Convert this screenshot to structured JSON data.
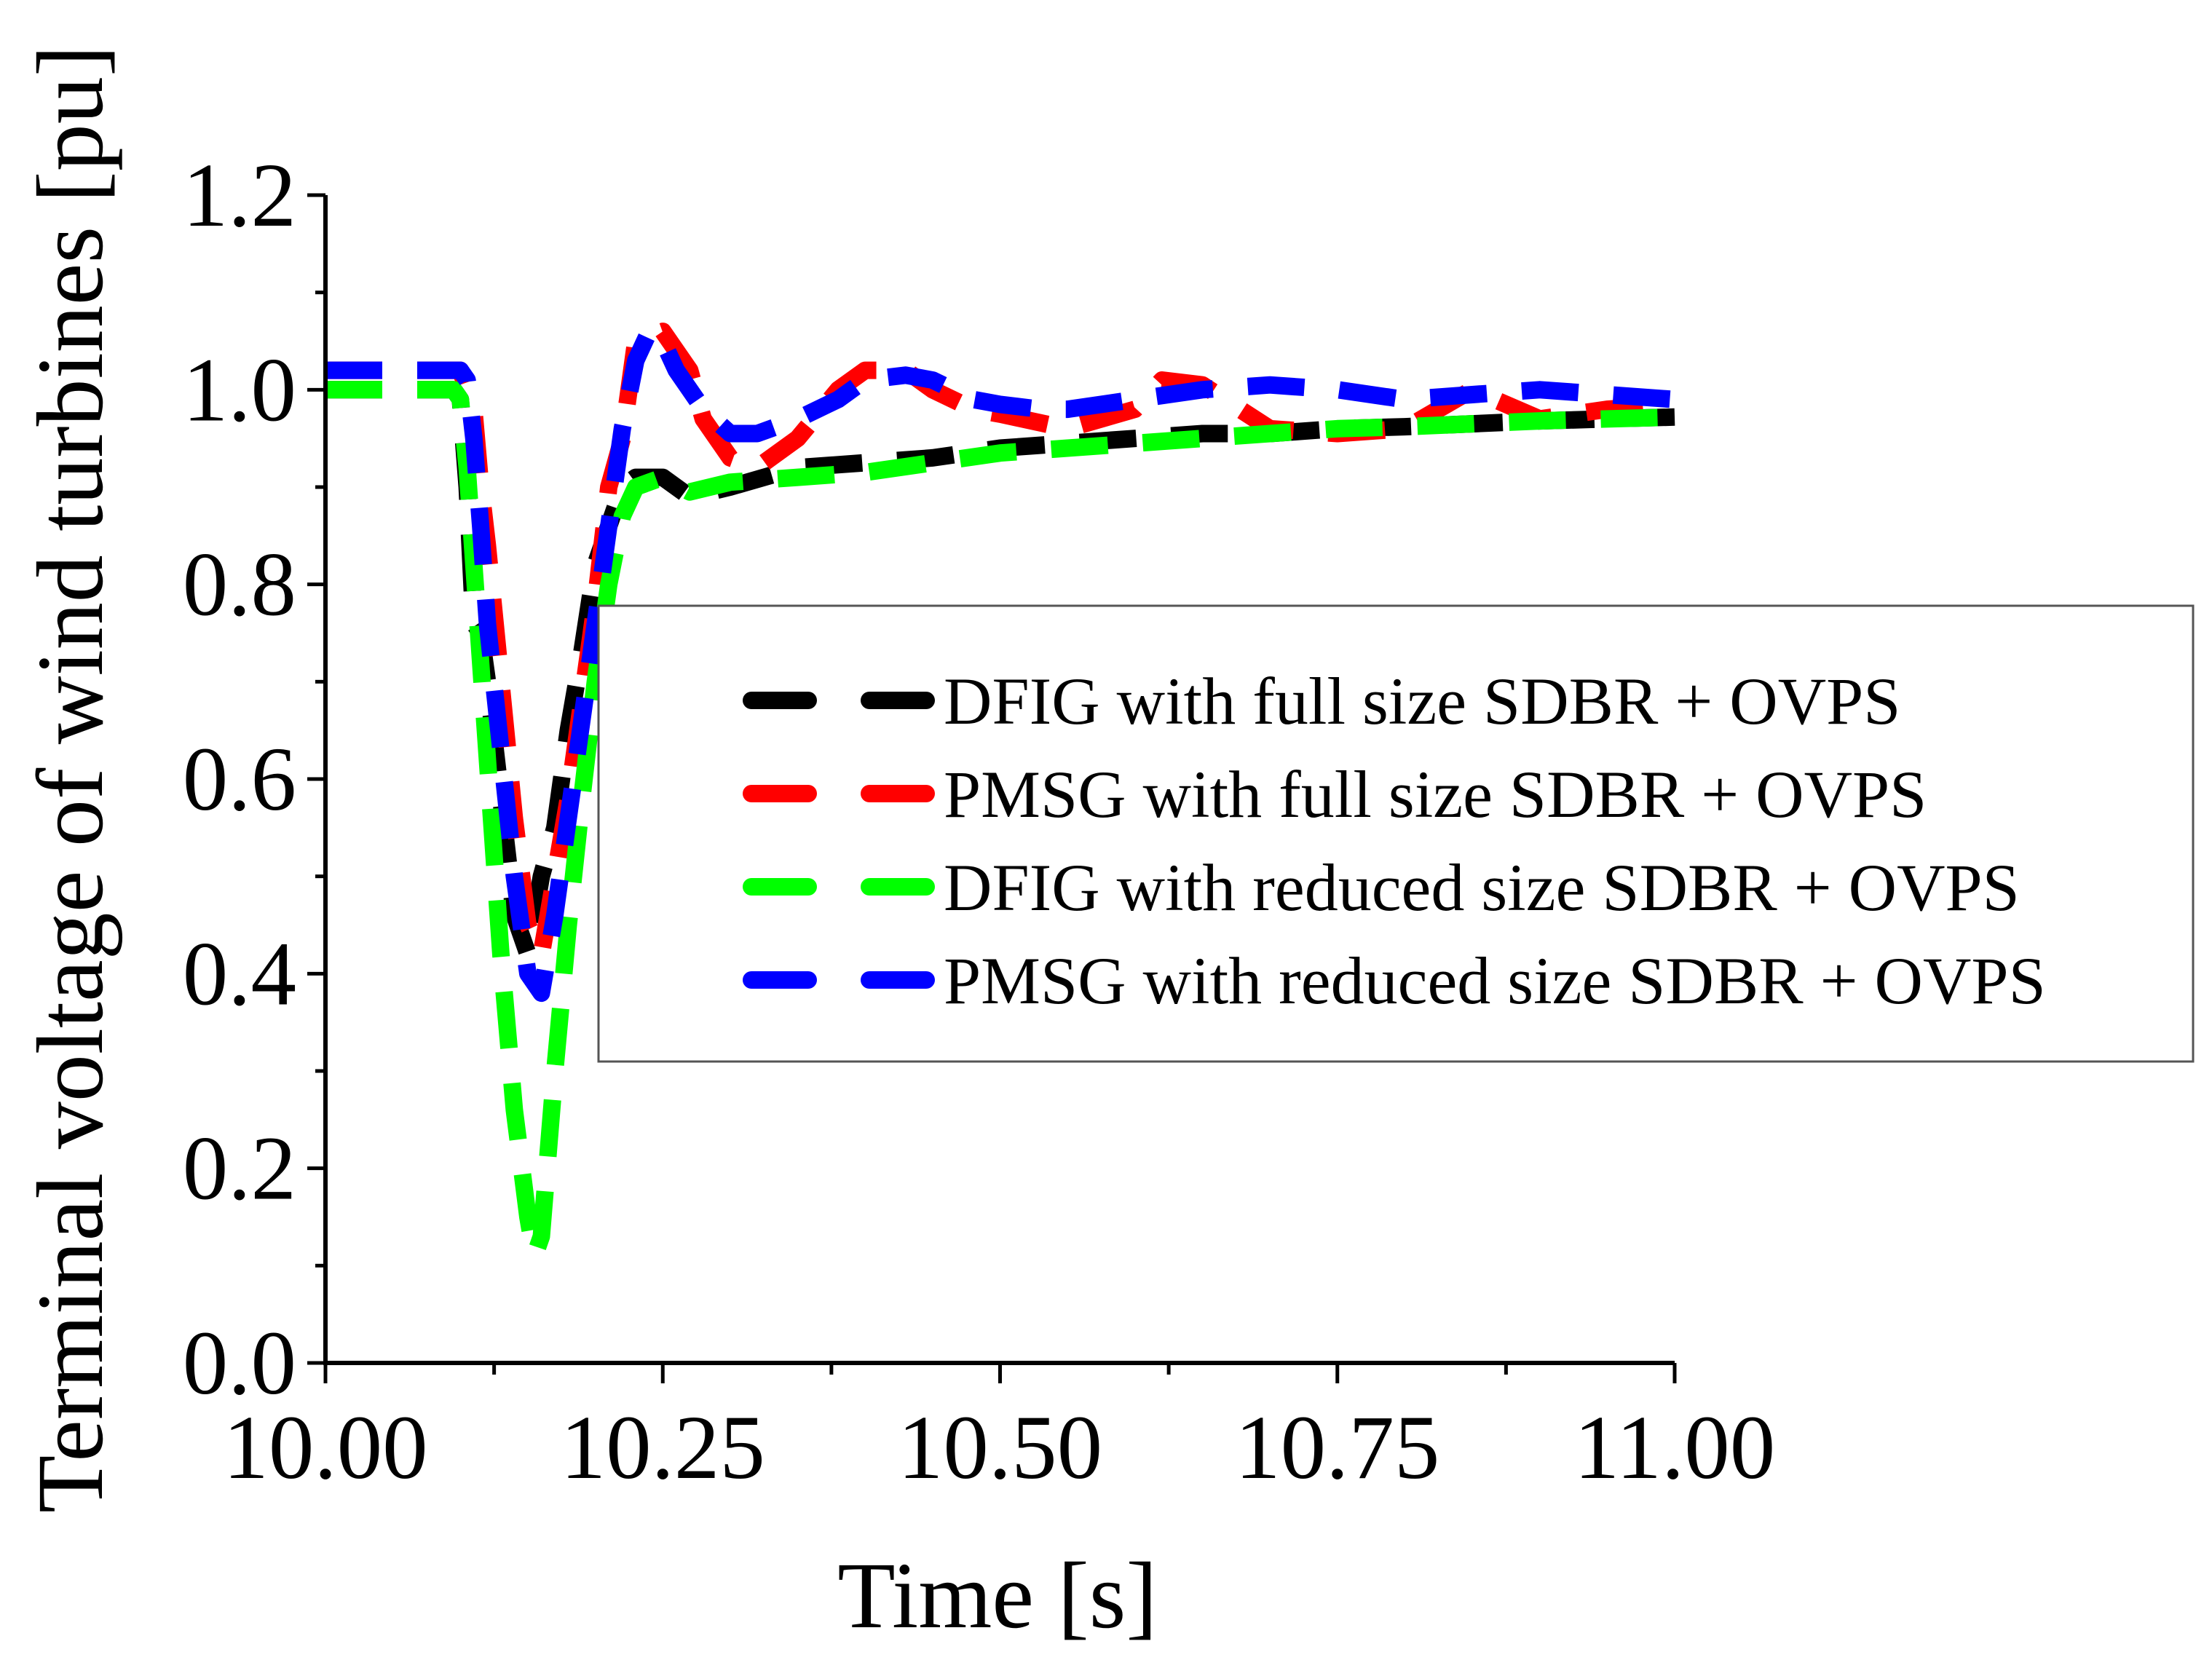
{
  "chart_data": {
    "type": "line",
    "title": "",
    "xlabel": "Time [s]",
    "ylabel": "Terminal voltage of wind turbines [pu]",
    "xlim": [
      10.0,
      11.0
    ],
    "ylim": [
      0.0,
      1.2
    ],
    "xticks": [
      10.0,
      10.25,
      10.5,
      10.75,
      11.0
    ],
    "xtick_labels": [
      "10.00",
      "10.25",
      "10.50",
      "10.75",
      "11.00"
    ],
    "yticks": [
      0.0,
      0.2,
      0.4,
      0.6,
      0.8,
      1.0,
      1.2
    ],
    "ytick_labels": [
      "0.0",
      "0.2",
      "0.4",
      "0.6",
      "0.8",
      "1.0",
      "1.2"
    ],
    "legend_position": "center-right",
    "series": [
      {
        "name": "DFIG with full size SDBR + OVPS",
        "color": "#000000",
        "x": [
          10.0,
          10.095,
          10.1,
          10.105,
          10.11,
          10.115,
          10.12,
          10.13,
          10.14,
          10.15,
          10.16,
          10.17,
          10.18,
          10.19,
          10.2,
          10.21,
          10.22,
          10.23,
          10.25,
          10.27,
          10.3,
          10.35,
          10.4,
          10.45,
          10.5,
          10.55,
          10.6,
          10.65,
          10.7,
          10.75,
          10.8,
          10.85,
          10.9,
          10.95,
          11.0
        ],
        "values": [
          1.0,
          1.0,
          0.99,
          0.9,
          0.76,
          0.75,
          0.7,
          0.58,
          0.46,
          0.42,
          0.5,
          0.55,
          0.65,
          0.73,
          0.82,
          0.86,
          0.9,
          0.91,
          0.91,
          0.89,
          0.9,
          0.92,
          0.925,
          0.93,
          0.94,
          0.945,
          0.95,
          0.955,
          0.955,
          0.96,
          0.962,
          0.965,
          0.968,
          0.97,
          0.972
        ]
      },
      {
        "name": "PMSG with full size SDBR + OVPS",
        "color": "#ff0000",
        "x": [
          10.0,
          10.05,
          10.1,
          10.105,
          10.11,
          10.115,
          10.12,
          10.13,
          10.14,
          10.15,
          10.16,
          10.17,
          10.18,
          10.19,
          10.2,
          10.21,
          10.22,
          10.23,
          10.25,
          10.27,
          10.28,
          10.3,
          10.32,
          10.35,
          10.38,
          10.4,
          10.43,
          10.45,
          10.48,
          10.5,
          10.55,
          10.6,
          10.62,
          10.65,
          10.7,
          10.75,
          10.8,
          10.85,
          10.9,
          10.95,
          11.0
        ],
        "values": [
          1.02,
          1.02,
          1.02,
          1.0,
          0.98,
          0.9,
          0.84,
          0.7,
          0.56,
          0.45,
          0.42,
          0.5,
          0.58,
          0.68,
          0.78,
          0.9,
          0.95,
          1.05,
          1.06,
          1.02,
          0.97,
          0.93,
          0.92,
          0.95,
          1.0,
          1.02,
          1.02,
          1.0,
          0.98,
          0.975,
          0.96,
          0.98,
          1.01,
          1.005,
          0.96,
          0.955,
          0.96,
          1.0,
          0.97,
          0.98,
          0.985
        ]
      },
      {
        "name": "DFIG with reduced size SDBR + OVPS",
        "color": "#00ff00",
        "x": [
          10.0,
          10.05,
          10.095,
          10.1,
          10.105,
          10.11,
          10.12,
          10.13,
          10.14,
          10.15,
          10.155,
          10.16,
          10.17,
          10.18,
          10.19,
          10.2,
          10.21,
          10.22,
          10.23,
          10.25,
          10.27,
          10.3,
          10.35,
          10.4,
          10.45,
          10.5,
          10.55,
          10.6,
          10.65,
          10.7,
          10.75,
          10.8,
          10.85,
          10.9,
          10.95,
          11.0
        ],
        "values": [
          1.0,
          1.0,
          1.0,
          0.99,
          0.92,
          0.82,
          0.62,
          0.42,
          0.26,
          0.15,
          0.11,
          0.13,
          0.3,
          0.45,
          0.58,
          0.7,
          0.8,
          0.87,
          0.9,
          0.91,
          0.895,
          0.905,
          0.91,
          0.915,
          0.925,
          0.935,
          0.94,
          0.945,
          0.95,
          0.955,
          0.96,
          0.962,
          0.965,
          0.968,
          0.97,
          0.972
        ]
      },
      {
        "name": "PMSG with reduced size SDBR + OVPS",
        "color": "#0000ff",
        "x": [
          10.0,
          10.05,
          10.09,
          10.1,
          10.105,
          10.11,
          10.115,
          10.12,
          10.13,
          10.14,
          10.15,
          10.16,
          10.17,
          10.18,
          10.19,
          10.2,
          10.21,
          10.22,
          10.23,
          10.24,
          10.25,
          10.26,
          10.28,
          10.3,
          10.32,
          10.35,
          10.38,
          10.4,
          10.43,
          10.45,
          10.48,
          10.5,
          10.53,
          10.55,
          10.6,
          10.65,
          10.7,
          10.75,
          10.8,
          10.85,
          10.9,
          10.95,
          11.0
        ],
        "values": [
          1.02,
          1.02,
          1.02,
          1.02,
          1.01,
          0.95,
          0.86,
          0.76,
          0.63,
          0.5,
          0.4,
          0.38,
          0.46,
          0.56,
          0.66,
          0.76,
          0.86,
          0.96,
          1.03,
          1.06,
          1.05,
          1.02,
          0.98,
          0.955,
          0.955,
          0.97,
          0.99,
          1.01,
          1.015,
          1.01,
          0.99,
          0.985,
          0.98,
          0.98,
          0.99,
          1.0,
          1.005,
          1.0,
          0.99,
          0.995,
          1.0,
          0.995,
          0.99
        ]
      }
    ]
  }
}
